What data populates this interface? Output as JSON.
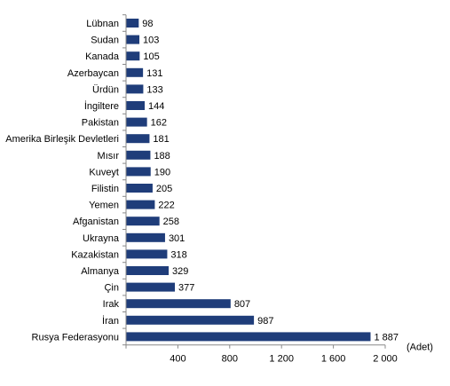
{
  "chart_data": {
    "type": "bar",
    "orientation": "horizontal",
    "categories": [
      "Lübnan",
      "Sudan",
      "Kanada",
      "Azerbaycan",
      "Ürdün",
      "İngiltere",
      "Pakistan",
      "Amerika Birleşik Devletleri",
      "Mısır",
      "Kuveyt",
      "Filistin",
      "Yemen",
      "Afganistan",
      "Ukrayna",
      "Kazakistan",
      "Almanya",
      "Çin",
      "Irak",
      "İran",
      "Rusya Federasyonu"
    ],
    "values": [
      98,
      103,
      105,
      131,
      133,
      144,
      162,
      181,
      188,
      190,
      205,
      222,
      258,
      301,
      318,
      329,
      377,
      807,
      987,
      1887
    ],
    "value_labels": [
      "98",
      "103",
      "105",
      "131",
      "133",
      "144",
      "162",
      "181",
      "188",
      "190",
      "205",
      "222",
      "258",
      "301",
      "318",
      "329",
      "377",
      "807",
      "987",
      "1 887"
    ],
    "xlim": [
      0,
      2000
    ],
    "x_ticks": [
      400,
      800,
      1200,
      1600,
      2000
    ],
    "x_tick_labels": [
      "400",
      "800",
      "1 200",
      "1 600",
      "2 000"
    ],
    "unit_label": "(Adet)",
    "title": "",
    "xlabel": "",
    "ylabel": "",
    "grid": false,
    "legend": "none",
    "bar_color": "#1F3D7A"
  }
}
